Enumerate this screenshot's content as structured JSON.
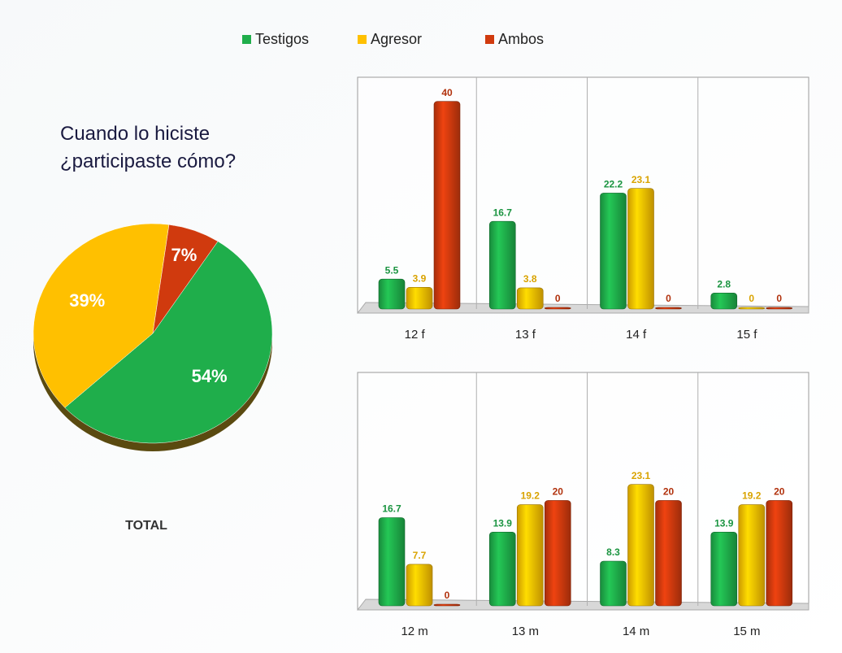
{
  "chart_data": [
    {
      "type": "pie",
      "title": "Cuando lo hiciste ¿participaste cómo?",
      "subtitle": "TOTAL",
      "values": [
        54,
        39,
        7
      ],
      "value_labels": [
        "54%",
        "39%",
        "7%"
      ],
      "colors": [
        "#1fae4b",
        "#ffc000",
        "#d03a0e"
      ]
    },
    {
      "type": "bar",
      "categories": [
        "12 f",
        "13 f",
        "14 f",
        "15 f"
      ],
      "ylim": [
        0,
        45
      ],
      "series": [
        {
          "name": "Testigos",
          "color": "#1fae4b",
          "values": [
            5.5,
            16.7,
            22.2,
            2.8
          ]
        },
        {
          "name": "Agresor",
          "color": "#ffc000",
          "values": [
            3.9,
            3.8,
            23.1,
            0
          ]
        },
        {
          "name": "Ambos",
          "color": "#d03a0e",
          "values": [
            40,
            0,
            0,
            0
          ]
        }
      ]
    },
    {
      "type": "bar",
      "categories": [
        "12 m",
        "13 m",
        "14 m",
        "15 m"
      ],
      "ylim": [
        0,
        45
      ],
      "series": [
        {
          "name": "Testigos",
          "color": "#1fae4b",
          "values": [
            16.7,
            13.9,
            8.3,
            13.9
          ]
        },
        {
          "name": "Agresor",
          "color": "#ffc000",
          "values": [
            7.7,
            19.2,
            23.1,
            19.2
          ]
        },
        {
          "name": "Ambos",
          "color": "#d03a0e",
          "values": [
            0,
            20,
            20,
            20
          ]
        }
      ]
    }
  ]
}
